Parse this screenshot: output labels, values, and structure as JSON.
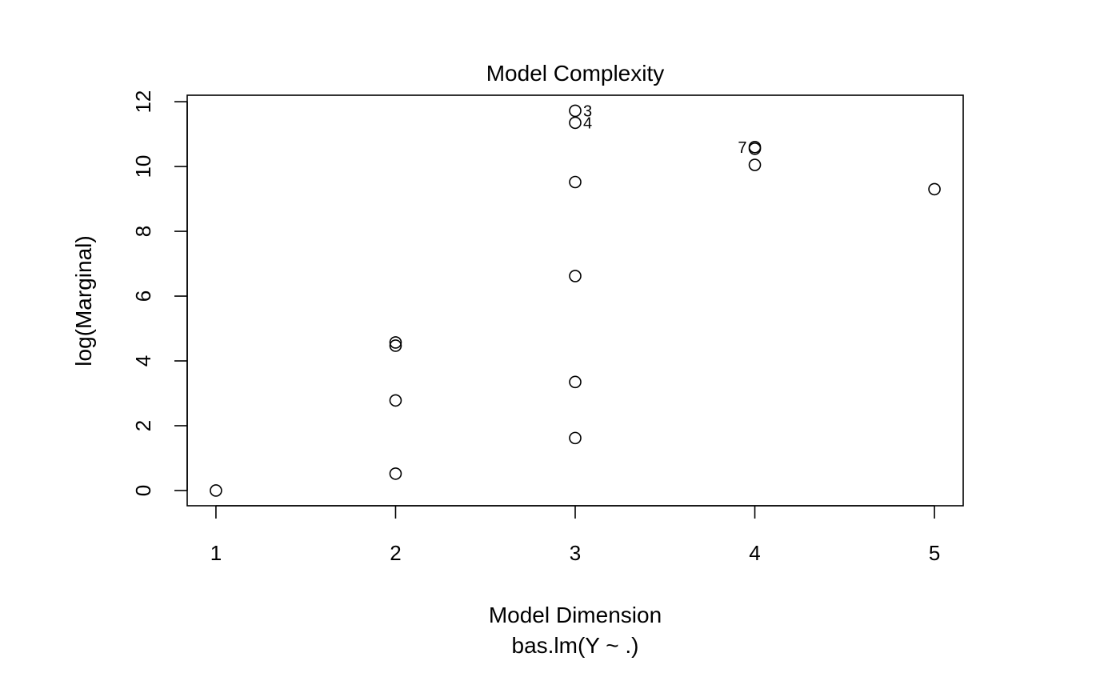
{
  "chart_data": {
    "type": "scatter",
    "title": "Model Complexity",
    "xlabel": "Model Dimension",
    "subtitle": "bas.lm(Y ~ .)",
    "ylabel": "log(Marginal)",
    "xlim": [
      0.84,
      5.16
    ],
    "ylim": [
      -0.47,
      12.2
    ],
    "x_ticks": [
      1,
      2,
      3,
      4,
      5
    ],
    "y_ticks": [
      0,
      2,
      4,
      6,
      8,
      10,
      12
    ],
    "grid": false,
    "points": [
      {
        "x": 1,
        "y": 0.0
      },
      {
        "x": 2,
        "y": 0.52
      },
      {
        "x": 2,
        "y": 2.78
      },
      {
        "x": 2,
        "y": 4.47
      },
      {
        "x": 2,
        "y": 4.57
      },
      {
        "x": 3,
        "y": 1.62
      },
      {
        "x": 3,
        "y": 3.35
      },
      {
        "x": 3,
        "y": 6.62
      },
      {
        "x": 3,
        "y": 9.52
      },
      {
        "x": 3,
        "y": 11.35,
        "label": "4"
      },
      {
        "x": 3,
        "y": 11.72,
        "label": "3"
      },
      {
        "x": 4,
        "y": 10.05
      },
      {
        "x": 4,
        "y": 10.55
      },
      {
        "x": 4,
        "y": 10.6,
        "label": "7"
      },
      {
        "x": 5,
        "y": 9.3
      }
    ]
  }
}
